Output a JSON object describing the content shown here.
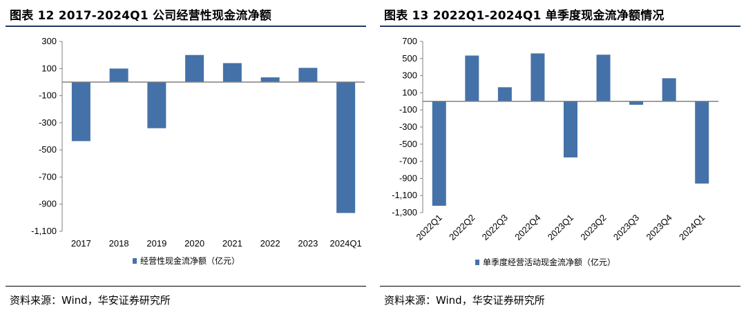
{
  "panels": [
    {
      "title": "图表 12 2017-2024Q1 公司经营性现金流净额",
      "source": "资料来源：Wind，华安证券研究所"
    },
    {
      "title": "图表 13 2022Q1-2024Q1 单季度现金流净额情况",
      "source": "资料来源：Wind，华安证券研究所"
    }
  ],
  "chart_data": [
    {
      "type": "bar",
      "title": "2017-2024Q1 公司经营性现金流净额",
      "categories": [
        "2017",
        "2018",
        "2019",
        "2020",
        "2021",
        "2022",
        "2023",
        "2024Q1"
      ],
      "values": [
        -435,
        100,
        -340,
        200,
        140,
        35,
        105,
        -965
      ],
      "ylim": [
        -1100,
        300
      ],
      "yticks": [
        "300",
        "100",
        "-100",
        "-300",
        "-500",
        "-700",
        "-900",
        "-1,100"
      ],
      "legend": "经营性现金流净额（亿元）",
      "color": "#4472a8"
    },
    {
      "type": "bar",
      "title": "2022Q1-2024Q1 单季度现金流净额情况",
      "categories": [
        "2022Q1",
        "2022Q2",
        "2022Q3",
        "2022Q4",
        "2023Q1",
        "2023Q2",
        "2023Q3",
        "2023Q4",
        "2024Q1"
      ],
      "values": [
        -1220,
        535,
        165,
        560,
        -655,
        545,
        -40,
        270,
        -960
      ],
      "ylim": [
        -1300,
        700
      ],
      "yticks": [
        "700",
        "500",
        "300",
        "100",
        "-100",
        "-300",
        "-500",
        "-700",
        "-900",
        "-1,100",
        "-1,300"
      ],
      "legend": "单季度经营活动现金流净额（亿元）",
      "color": "#4472a8"
    }
  ]
}
